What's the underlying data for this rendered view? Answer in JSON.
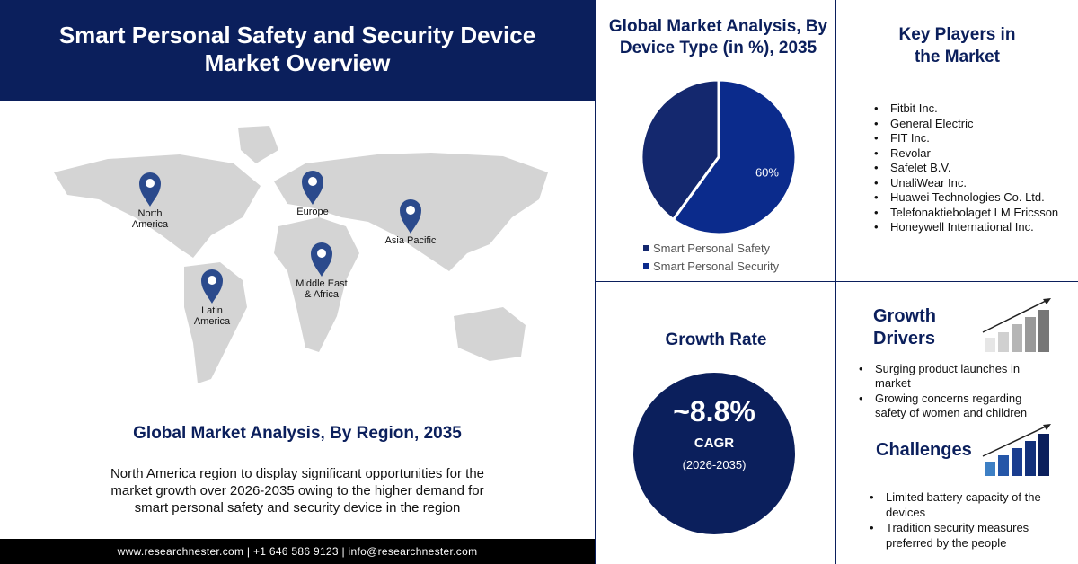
{
  "header": {
    "title_lines": [
      "Smart Personal Safety and Security Device",
      "Market Overview"
    ]
  },
  "map": {
    "regions": [
      "North America",
      "Europe",
      "Asia Pacific",
      "Latin America",
      "Middle East & Africa"
    ]
  },
  "region_section": {
    "title": "Global Market Analysis, By Region, 2035",
    "text": "North America region to display significant opportunities for the market growth over 2026-2035 owing to the higher demand for smart personal safety and security device in the region"
  },
  "footer": {
    "text": "www.researchnester.com | +1 646 586 9123 | info@researchnester.com"
  },
  "device_type_chart": {
    "type": "pie",
    "title": "Global Market Analysis, By Device Type (in %), 2035",
    "categories": [
      "Smart Personal Safety",
      "Smart Personal Security"
    ],
    "values": [
      40,
      60
    ],
    "value_labels": [
      null,
      "60%"
    ],
    "colors": [
      "#14286e",
      "#0b2b8c"
    ]
  },
  "key_players": {
    "title_lines": [
      "Key Players in",
      "the Market"
    ],
    "items": [
      "Fitbit Inc.",
      "General Electric",
      "FIT Inc.",
      "Revolar",
      "Safelet B.V.",
      "UnaliWear Inc.",
      "Huawei Technologies Co. Ltd.",
      "Telefonaktiebolaget LM Ericsson",
      "Honeywell International Inc."
    ]
  },
  "growth_rate": {
    "title": "Growth Rate",
    "value": "~8.8%",
    "label": "CAGR",
    "period": "(2026-2035)"
  },
  "growth_drivers": {
    "title_lines": [
      "Growth",
      "Drivers"
    ],
    "items": [
      "Surging product launches in market",
      "Growing concerns regarding safety of women and children"
    ]
  },
  "challenges": {
    "title": "Challenges",
    "items": [
      "Limited battery capacity of the devices",
      "Tradition security measures preferred by the people"
    ]
  }
}
